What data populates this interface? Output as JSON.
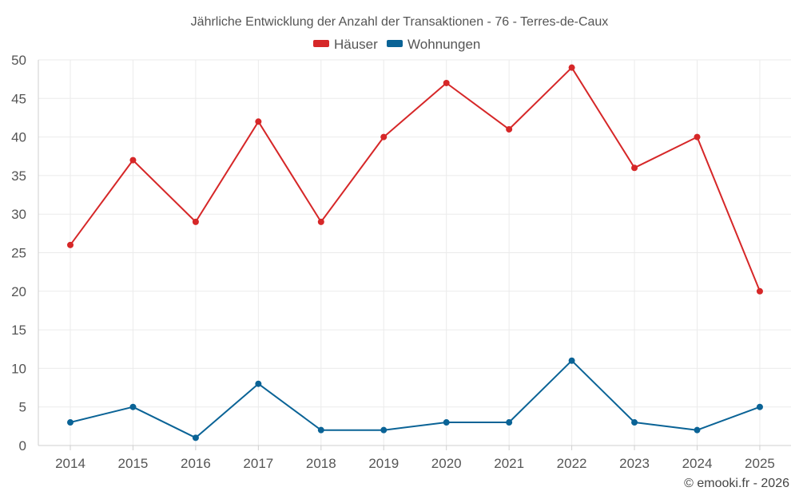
{
  "chart_data": {
    "type": "line",
    "title": "Jährliche Entwicklung der Anzahl der Transaktionen - 76 - Terres-de-Caux",
    "x": [
      "2014",
      "2015",
      "2016",
      "2017",
      "2018",
      "2019",
      "2020",
      "2021",
      "2022",
      "2023",
      "2024",
      "2025"
    ],
    "series": [
      {
        "name": "Häuser",
        "color": "#d62728",
        "values": [
          26,
          37,
          29,
          42,
          29,
          40,
          47,
          41,
          49,
          36,
          40,
          20
        ]
      },
      {
        "name": "Wohnungen",
        "color": "#0a6396",
        "values": [
          3,
          5,
          1,
          8,
          2,
          2,
          3,
          3,
          11,
          3,
          2,
          5
        ]
      }
    ],
    "ylim": [
      0,
      50
    ],
    "yticks": [
      0,
      5,
      10,
      15,
      20,
      25,
      30,
      35,
      40,
      45,
      50
    ],
    "xlabel": "",
    "ylabel": "",
    "legend_position": "top-center",
    "grid": true
  },
  "credit": "© emooki.fr - 2026"
}
